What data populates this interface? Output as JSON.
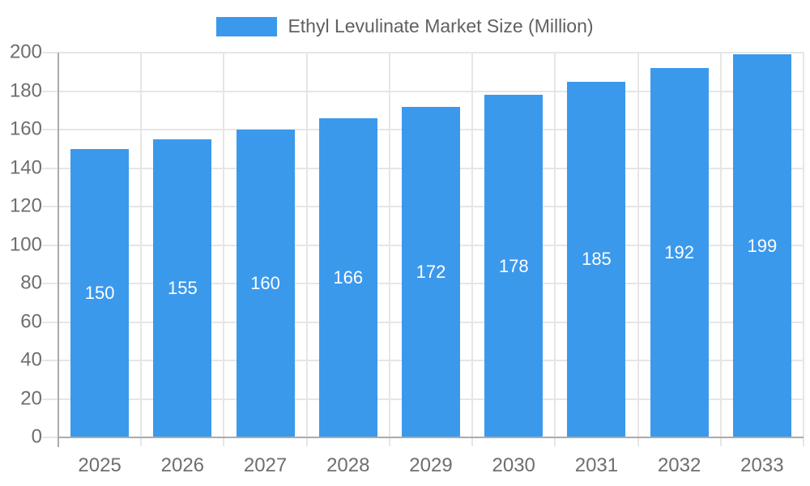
{
  "chart_data": {
    "type": "bar",
    "title": "Ethyl Levulinate Market Size (Million)",
    "categories": [
      "2025",
      "2026",
      "2027",
      "2028",
      "2029",
      "2030",
      "2031",
      "2032",
      "2033"
    ],
    "values": [
      150,
      155,
      160,
      166,
      172,
      178,
      185,
      192,
      199
    ],
    "xlabel": "",
    "ylabel": "",
    "ylim": [
      0,
      200
    ],
    "ytick_step": 20,
    "yticks": [
      "0",
      "20",
      "40",
      "60",
      "80",
      "100",
      "120",
      "140",
      "160",
      "180",
      "200"
    ],
    "grid": true,
    "value_labels_inside_bars": true,
    "legend": {
      "position": "top-center",
      "label": "Ethyl Levulinate Market Size (Million)"
    },
    "colors": {
      "bar": "#3B99EC",
      "grid": "#E6E6E6",
      "axis": "#ABABAB",
      "tick_label": "#6E6E6E",
      "legend_text": "#606060",
      "value_label": "#FFFFFF",
      "background": "#FFFFFF"
    }
  }
}
